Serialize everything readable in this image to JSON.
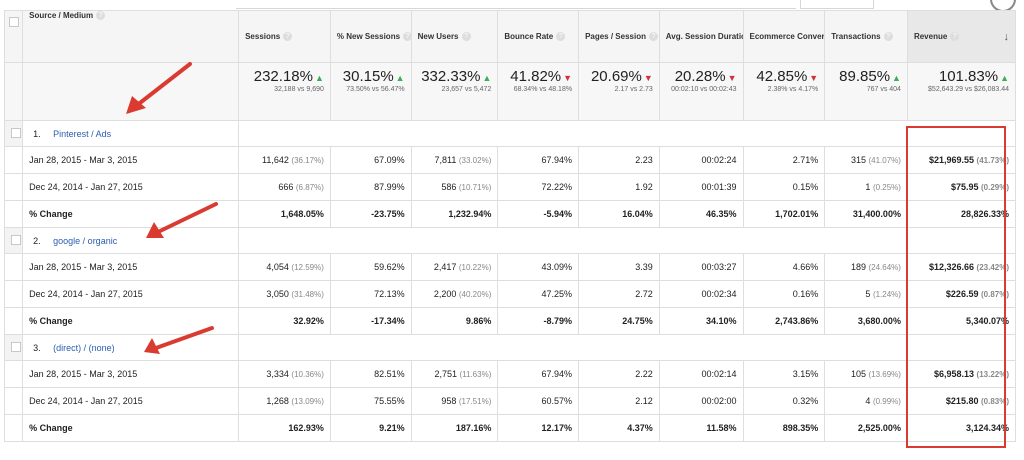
{
  "columns": {
    "source_medium": "Source / Medium",
    "sessions": "Sessions",
    "new_sessions": "% New Sessions",
    "new_users": "New Users",
    "bounce_rate": "Bounce Rate",
    "pages_session": "Pages / Session",
    "avg_duration": "Avg. Session Duration",
    "ecom_rate": "Ecommerce Conversion Rate",
    "transactions": "Transactions",
    "revenue": "Revenue",
    "help": "?",
    "sort": "↓"
  },
  "summary": {
    "sessions": {
      "value": "232.18%",
      "sub": "32,188 vs 9,690",
      "dir": "▲"
    },
    "new_sessions": {
      "value": "30.15%",
      "sub": "73.50% vs 56.47%",
      "dir": "▲"
    },
    "new_users": {
      "value": "332.33%",
      "sub": "23,657 vs 5,472",
      "dir": "▲"
    },
    "bounce_rate": {
      "value": "41.82%",
      "sub": "68.34% vs 48.18%",
      "dir": "▼"
    },
    "pages_session": {
      "value": "20.69%",
      "sub": "2.17 vs 2.73",
      "dir": "▼"
    },
    "avg_duration": {
      "value": "20.28%",
      "sub": "00:02:10 vs 00:02:43",
      "dir": "▼"
    },
    "ecom_rate": {
      "value": "42.85%",
      "sub": "2.38% vs 4.17%",
      "dir": "▼"
    },
    "transactions": {
      "value": "89.85%",
      "sub": "767 vs 404",
      "dir": "▲"
    },
    "revenue": {
      "value": "101.83%",
      "sub": "$52,643.29 vs $26,083.44",
      "dir": "▲"
    }
  },
  "groups": [
    {
      "index": "1.",
      "name": "Pinterest / Ads",
      "rows": [
        {
          "label": "Jan 28, 2015 - Mar 3, 2015",
          "sessions": "11,642",
          "sessions_pct": "(36.17%)",
          "new_sessions": "67.09%",
          "new_users": "7,811",
          "new_users_pct": "(33.02%)",
          "bounce": "67.94%",
          "pages": "2.23",
          "duration": "00:02:24",
          "ecom": "2.71%",
          "trans": "315",
          "trans_pct": "(41.07%)",
          "revenue": "$21,969.55",
          "revenue_pct": "(41.73%)"
        },
        {
          "label": "Dec 24, 2014 - Jan 27, 2015",
          "sessions": "666",
          "sessions_pct": "(6.87%)",
          "new_sessions": "87.99%",
          "new_users": "586",
          "new_users_pct": "(10.71%)",
          "bounce": "72.22%",
          "pages": "1.92",
          "duration": "00:01:39",
          "ecom": "0.15%",
          "trans": "1",
          "trans_pct": "(0.25%)",
          "revenue": "$75.95",
          "revenue_pct": "(0.29%)"
        }
      ],
      "change": {
        "label": "% Change",
        "sessions": "1,648.05%",
        "new_sessions": "-23.75%",
        "new_users": "1,232.94%",
        "bounce": "-5.94%",
        "pages": "16.04%",
        "duration": "46.35%",
        "ecom": "1,702.01%",
        "trans": "31,400.00%",
        "revenue": "28,826.33%"
      }
    },
    {
      "index": "2.",
      "name": "google / organic",
      "rows": [
        {
          "label": "Jan 28, 2015 - Mar 3, 2015",
          "sessions": "4,054",
          "sessions_pct": "(12.59%)",
          "new_sessions": "59.62%",
          "new_users": "2,417",
          "new_users_pct": "(10.22%)",
          "bounce": "43.09%",
          "pages": "3.39",
          "duration": "00:03:27",
          "ecom": "4.66%",
          "trans": "189",
          "trans_pct": "(24.64%)",
          "revenue": "$12,326.66",
          "revenue_pct": "(23.42%)"
        },
        {
          "label": "Dec 24, 2014 - Jan 27, 2015",
          "sessions": "3,050",
          "sessions_pct": "(31.48%)",
          "new_sessions": "72.13%",
          "new_users": "2,200",
          "new_users_pct": "(40.20%)",
          "bounce": "47.25%",
          "pages": "2.72",
          "duration": "00:02:34",
          "ecom": "0.16%",
          "trans": "5",
          "trans_pct": "(1.24%)",
          "revenue": "$226.59",
          "revenue_pct": "(0.87%)"
        }
      ],
      "change": {
        "label": "% Change",
        "sessions": "32.92%",
        "new_sessions": "-17.34%",
        "new_users": "9.86%",
        "bounce": "-8.79%",
        "pages": "24.75%",
        "duration": "34.10%",
        "ecom": "2,743.86%",
        "trans": "3,680.00%",
        "revenue": "5,340.07%"
      }
    },
    {
      "index": "3.",
      "name": "(direct) / (none)",
      "rows": [
        {
          "label": "Jan 28, 2015 - Mar 3, 2015",
          "sessions": "3,334",
          "sessions_pct": "(10.36%)",
          "new_sessions": "82.51%",
          "new_users": "2,751",
          "new_users_pct": "(11.63%)",
          "bounce": "67.94%",
          "pages": "2.22",
          "duration": "00:02:14",
          "ecom": "3.15%",
          "trans": "105",
          "trans_pct": "(13.69%)",
          "revenue": "$6,958.13",
          "revenue_pct": "(13.22%)"
        },
        {
          "label": "Dec 24, 2014 - Jan 27, 2015",
          "sessions": "1,268",
          "sessions_pct": "(13.09%)",
          "new_sessions": "75.55%",
          "new_users": "958",
          "new_users_pct": "(17.51%)",
          "bounce": "60.57%",
          "pages": "2.12",
          "duration": "00:02:00",
          "ecom": "0.32%",
          "trans": "4",
          "trans_pct": "(0.99%)",
          "revenue": "$215.80",
          "revenue_pct": "(0.83%)"
        }
      ],
      "change": {
        "label": "% Change",
        "sessions": "162.93%",
        "new_sessions": "9.21%",
        "new_users": "187.16%",
        "bounce": "12.17%",
        "pages": "4.37%",
        "duration": "11.58%",
        "ecom": "898.35%",
        "trans": "2,525.00%",
        "revenue": "3,124.34%"
      }
    }
  ],
  "colors": {
    "annotation": "#d93b31",
    "up": "#3cae52",
    "down": "#d0313c",
    "link": "#2a5db0"
  }
}
